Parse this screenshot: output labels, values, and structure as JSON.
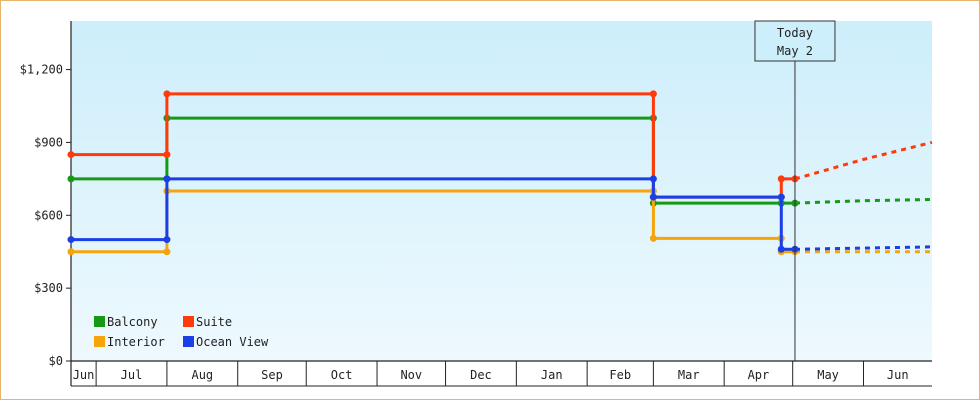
{
  "chart_data": {
    "type": "line",
    "title": "",
    "xlabel": "",
    "ylabel": "",
    "ylim": [
      0,
      1400
    ],
    "y_ticks": [
      {
        "value": 0,
        "label": "$0"
      },
      {
        "value": 300,
        "label": "$300"
      },
      {
        "value": 600,
        "label": "$600"
      },
      {
        "value": 900,
        "label": "$900"
      },
      {
        "value": 1200,
        "label": "$1,200"
      }
    ],
    "x_months": [
      {
        "label": "Jun",
        "start": "2023-06-01",
        "end": "2023-07-01"
      },
      {
        "label": "Jul",
        "start": "2023-07-01",
        "end": "2023-08-01"
      },
      {
        "label": "Aug",
        "start": "2023-08-01",
        "end": "2023-09-01"
      },
      {
        "label": "Sep",
        "start": "2023-09-01",
        "end": "2023-10-01"
      },
      {
        "label": "Oct",
        "start": "2023-10-01",
        "end": "2023-11-01"
      },
      {
        "label": "Nov",
        "start": "2023-11-01",
        "end": "2023-12-01"
      },
      {
        "label": "Dec",
        "start": "2023-12-01",
        "end": "2024-01-01"
      },
      {
        "label": "Jan",
        "start": "2024-01-01",
        "end": "2024-02-01"
      },
      {
        "label": "Feb",
        "start": "2024-02-01",
        "end": "2024-03-01"
      },
      {
        "label": "Mar",
        "start": "2024-03-01",
        "end": "2024-04-01"
      },
      {
        "label": "Apr",
        "start": "2024-04-01",
        "end": "2024-05-01"
      },
      {
        "label": "May",
        "start": "2024-05-01",
        "end": "2024-06-01"
      },
      {
        "label": "Jun",
        "start": "2024-06-01",
        "end": "2024-07-01"
      }
    ],
    "x_range": [
      "2023-06-20",
      "2024-07-01"
    ],
    "today": {
      "line1": "Today",
      "line2": "May 2",
      "date": "2024-05-02"
    },
    "legend": {
      "placement": "bottom-left"
    },
    "grid": false,
    "series": [
      {
        "name": "Balcony",
        "color": "#169a16",
        "points": [
          [
            "2023-06-20",
            750
          ],
          [
            "2023-08-01",
            750
          ],
          [
            "2023-08-01",
            1000
          ],
          [
            "2024-03-01",
            1000
          ],
          [
            "2024-03-01",
            650
          ],
          [
            "2024-04-26",
            650
          ],
          [
            "2024-05-02",
            650
          ]
        ],
        "projection": [
          [
            "2024-05-02",
            650
          ],
          [
            "2024-06-01",
            660
          ],
          [
            "2024-07-01",
            665
          ]
        ]
      },
      {
        "name": "Suite",
        "color": "#ff3a0a",
        "points": [
          [
            "2023-06-20",
            850
          ],
          [
            "2023-08-01",
            850
          ],
          [
            "2023-08-01",
            1100
          ],
          [
            "2024-03-01",
            1100
          ],
          [
            "2024-03-01",
            675
          ],
          [
            "2024-04-26",
            675
          ],
          [
            "2024-04-26",
            750
          ],
          [
            "2024-05-02",
            750
          ]
        ],
        "projection": [
          [
            "2024-05-02",
            750
          ],
          [
            "2024-06-01",
            830
          ],
          [
            "2024-07-01",
            900
          ]
        ]
      },
      {
        "name": "Interior",
        "color": "#f5a50a",
        "points": [
          [
            "2023-06-20",
            450
          ],
          [
            "2023-08-01",
            450
          ],
          [
            "2023-08-01",
            700
          ],
          [
            "2024-03-01",
            700
          ],
          [
            "2024-03-01",
            505
          ],
          [
            "2024-04-26",
            505
          ],
          [
            "2024-04-26",
            450
          ],
          [
            "2024-05-02",
            450
          ]
        ],
        "projection": [
          [
            "2024-05-02",
            450
          ],
          [
            "2024-06-01",
            450
          ],
          [
            "2024-07-01",
            450
          ]
        ]
      },
      {
        "name": "Ocean View",
        "color": "#1a3fe6",
        "points": [
          [
            "2023-06-20",
            500
          ],
          [
            "2023-08-01",
            500
          ],
          [
            "2023-08-01",
            750
          ],
          [
            "2024-03-01",
            750
          ],
          [
            "2024-03-01",
            675
          ],
          [
            "2024-04-26",
            675
          ],
          [
            "2024-04-26",
            460
          ],
          [
            "2024-05-02",
            460
          ]
        ],
        "projection": [
          [
            "2024-05-02",
            460
          ],
          [
            "2024-06-01",
            465
          ],
          [
            "2024-07-01",
            470
          ]
        ]
      }
    ]
  }
}
